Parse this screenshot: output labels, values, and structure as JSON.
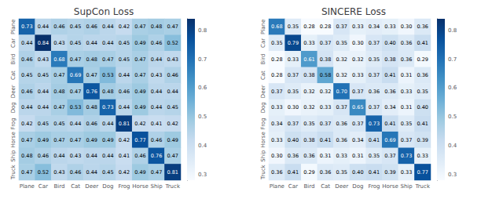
{
  "chart_data": [
    {
      "type": "heatmap",
      "title": "SupCon Loss",
      "categories": [
        "Plane",
        "Car",
        "Bird",
        "Cat",
        "Deer",
        "Dog",
        "Frog",
        "Horse",
        "Ship",
        "Truck"
      ],
      "values": [
        [
          0.73,
          0.44,
          0.46,
          0.45,
          0.46,
          0.44,
          0.42,
          0.47,
          0.48,
          0.47
        ],
        [
          0.44,
          0.84,
          0.43,
          0.45,
          0.44,
          0.44,
          0.45,
          0.49,
          0.46,
          0.52
        ],
        [
          0.46,
          0.43,
          0.68,
          0.47,
          0.48,
          0.47,
          0.45,
          0.47,
          0.44,
          0.43
        ],
        [
          0.45,
          0.45,
          0.47,
          0.69,
          0.47,
          0.53,
          0.44,
          0.47,
          0.43,
          0.46
        ],
        [
          0.46,
          0.44,
          0.48,
          0.47,
          0.76,
          0.48,
          0.46,
          0.49,
          0.44,
          0.44
        ],
        [
          0.44,
          0.44,
          0.47,
          0.53,
          0.48,
          0.73,
          0.44,
          0.49,
          0.44,
          0.45
        ],
        [
          0.42,
          0.45,
          0.45,
          0.44,
          0.46,
          0.44,
          0.81,
          0.42,
          0.41,
          0.42
        ],
        [
          0.47,
          0.49,
          0.47,
          0.47,
          0.49,
          0.49,
          0.42,
          0.77,
          0.46,
          0.49
        ],
        [
          0.48,
          0.46,
          0.44,
          0.43,
          0.44,
          0.44,
          0.41,
          0.46,
          0.76,
          0.47
        ],
        [
          0.47,
          0.52,
          0.43,
          0.46,
          0.44,
          0.45,
          0.42,
          0.49,
          0.47,
          0.81
        ]
      ],
      "value_labels": [
        [
          "0.73",
          "0.44",
          "0.46",
          "0.45",
          "0.46",
          "0.44",
          "0.42",
          "0.47",
          "0.48",
          "0.47"
        ],
        [
          "0.44",
          "0.84",
          "0.43",
          "0.45",
          "0.44",
          "0.44",
          "0.45",
          "0.49",
          "0.46",
          "0.52"
        ],
        [
          "0.46",
          "0.43",
          "0.68",
          "0.47",
          "0.48",
          "0.47",
          "0.45",
          "0.47",
          "0.44",
          "0.43"
        ],
        [
          "0.45",
          "0.45",
          "0.47",
          "0.69",
          "0.47",
          "0.53",
          "0.44",
          "0.47",
          "0.43",
          "0.46"
        ],
        [
          "0.46",
          "0.44",
          "0.48",
          "0.47",
          "0.76",
          "0.48",
          "0.46",
          "0.49",
          "0.44",
          "0.44"
        ],
        [
          "0.44",
          "0.44",
          "0.47",
          "0.53",
          "0.48",
          "0.73",
          "0.44",
          "0.49",
          "0.44",
          "0.45"
        ],
        [
          "0.42",
          "0.45",
          "0.45",
          "0.44",
          "0.46",
          "0.44",
          "0.81",
          "0.42",
          "0.41",
          "0.42"
        ],
        [
          "0.47",
          "0.49",
          "0.47",
          "0.47",
          "0.49",
          "0.49",
          "0.42",
          "0.77",
          "0.46",
          "0.49"
        ],
        [
          "0.48",
          "0.46",
          "0.44",
          "0.43",
          "0.44",
          "0.44",
          "0.41",
          "0.46",
          "0.76",
          "0.47"
        ],
        [
          "0.47",
          "0.52",
          "0.43",
          "0.46",
          "0.44",
          "0.45",
          "0.42",
          "0.49",
          "0.47",
          "0.81"
        ]
      ],
      "data_labels": true,
      "color": "Blues",
      "color_range": [
        0.28,
        0.84
      ],
      "color_ticks": [
        0.3,
        0.4,
        0.5,
        0.6,
        0.7,
        0.8
      ]
    },
    {
      "type": "heatmap",
      "title": "SINCERE Loss",
      "categories": [
        "Plane",
        "Car",
        "Bird",
        "Cat",
        "Deer",
        "Dog",
        "Frog",
        "Horse",
        "Ship",
        "Truck"
      ],
      "values": [
        [
          0.68,
          0.35,
          0.28,
          0.28,
          0.37,
          0.33,
          0.34,
          0.33,
          0.3,
          0.36
        ],
        [
          0.35,
          0.79,
          0.33,
          0.37,
          0.35,
          0.3,
          0.37,
          0.4,
          0.36,
          0.41
        ],
        [
          0.28,
          0.33,
          0.61,
          0.38,
          0.32,
          0.32,
          0.35,
          0.38,
          0.36,
          0.29
        ],
        [
          0.28,
          0.37,
          0.38,
          0.58,
          0.32,
          0.33,
          0.37,
          0.41,
          0.31,
          0.36
        ],
        [
          0.37,
          0.35,
          0.32,
          0.32,
          0.7,
          0.37,
          0.36,
          0.36,
          0.33,
          0.35
        ],
        [
          0.33,
          0.3,
          0.32,
          0.33,
          0.37,
          0.65,
          0.37,
          0.34,
          0.31,
          0.4
        ],
        [
          0.34,
          0.37,
          0.35,
          0.37,
          0.36,
          0.37,
          0.73,
          0.41,
          0.35,
          0.41
        ],
        [
          0.33,
          0.4,
          0.38,
          0.41,
          0.36,
          0.34,
          0.41,
          0.69,
          0.37,
          0.39
        ],
        [
          0.3,
          0.36,
          0.36,
          0.31,
          0.33,
          0.31,
          0.35,
          0.37,
          0.73,
          0.33
        ],
        [
          0.36,
          0.41,
          0.29,
          0.36,
          0.35,
          0.4,
          0.41,
          0.39,
          0.33,
          0.77
        ]
      ],
      "value_labels": [
        [
          "0.68",
          "0.35",
          "0.28",
          "0.28",
          "0.37",
          "0.33",
          "0.34",
          "0.33",
          "0.30",
          "0.36"
        ],
        [
          "0.35",
          "0.79",
          "0.33",
          "0.37",
          "0.35",
          "0.30",
          "0.37",
          "0.40",
          "0.36",
          "0.41"
        ],
        [
          "0.28",
          "0.33",
          "0.61",
          "0.38",
          "0.32",
          "0.32",
          "0.35",
          "0.38",
          "0.36",
          "0.29"
        ],
        [
          "0.28",
          "0.37",
          "0.38",
          "0.58",
          "0.32",
          "0.33",
          "0.37",
          "0.41",
          "0.31",
          "0.36"
        ],
        [
          "0.37",
          "0.35",
          "0.32",
          "0.32",
          "0.70",
          "0.37",
          "0.36",
          "0.36",
          "0.33",
          "0.35"
        ],
        [
          "0.33",
          "0.30",
          "0.32",
          "0.33",
          "0.37",
          "0.65",
          "0.37",
          "0.34",
          "0.31",
          "0.40"
        ],
        [
          "0.34",
          "0.37",
          "0.35",
          "0.37",
          "0.36",
          "0.37",
          "0.73",
          "0.41",
          "0.35",
          "0.41"
        ],
        [
          "0.33",
          "0.40",
          "0.38",
          "0.41",
          "0.36",
          "0.34",
          "0.41",
          "0.69",
          "0.37",
          "0.39"
        ],
        [
          "0.30",
          "0.36",
          "0.36",
          "0.31",
          "0.33",
          "0.31",
          "0.35",
          "0.37",
          "0.73",
          "0.33"
        ],
        [
          "0.36",
          "0.41",
          "0.29",
          "0.36",
          "0.35",
          "0.40",
          "0.41",
          "0.39",
          "0.33",
          "0.77"
        ]
      ],
      "data_labels": true,
      "color": "Blues",
      "color_range": [
        0.28,
        0.84
      ],
      "color_ticks": [
        0.3,
        0.4,
        0.5,
        0.6,
        0.7,
        0.8
      ]
    }
  ]
}
